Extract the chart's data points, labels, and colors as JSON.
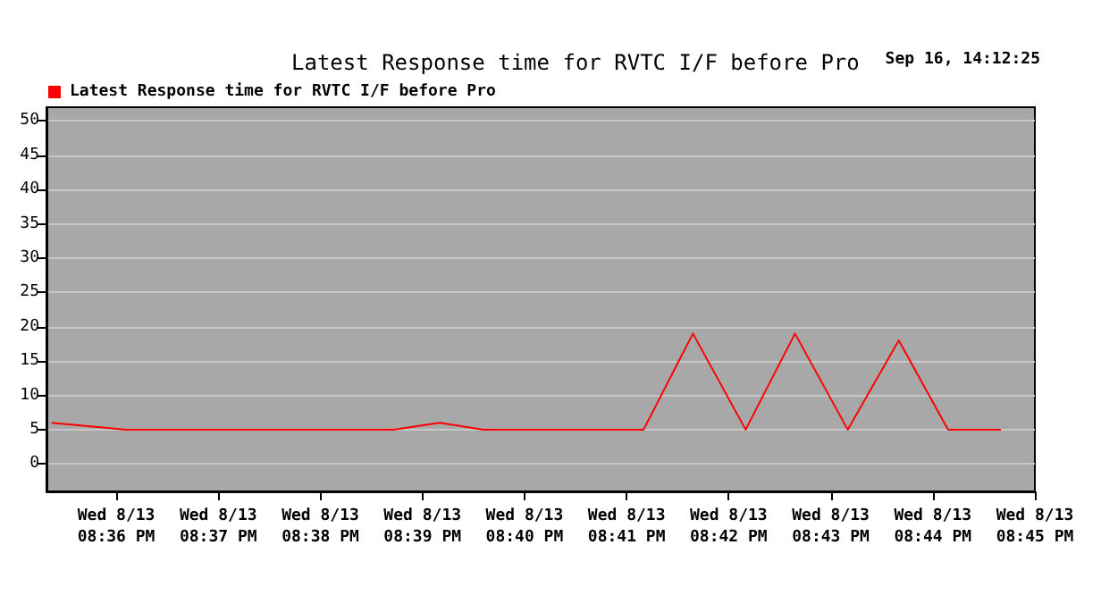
{
  "chart_data": {
    "type": "line",
    "title": "Latest Response time for RVTC I/F before Pro",
    "annotations": [
      "Sep 16, 14:12:25"
    ],
    "x": [
      "--08-13T20:35:22",
      "--08-13T20:36:06",
      "--08-13T20:38:43",
      "--08-13T20:39:10",
      "--08-13T20:39:36",
      "--08-13T20:41:10",
      "--08-13T20:41:39",
      "--08-13T20:42:10",
      "--08-13T20:42:39",
      "--08-13T20:43:10",
      "--08-13T20:43:40",
      "--08-13T20:44:09",
      "--08-13T20:44:40"
    ],
    "series": [
      {
        "name": "Latest Response time for RVTC I/F before Pro",
        "color": "#ff0000",
        "values": [
          6,
          5,
          5,
          6,
          5,
          5,
          19,
          5,
          19,
          5,
          18,
          5,
          5
        ]
      }
    ],
    "xlim": [
      "--08-13T20:35:19",
      "--08-13T20:45"
    ],
    "xticks": [
      {
        "value": "--08-13T20:36",
        "label": "Wed 8/13\n08:36 PM"
      },
      {
        "value": "--08-13T20:37",
        "label": "Wed 8/13\n08:37 PM"
      },
      {
        "value": "--08-13T20:38",
        "label": "Wed 8/13\n08:38 PM"
      },
      {
        "value": "--08-13T20:39",
        "label": "Wed 8/13\n08:39 PM"
      },
      {
        "value": "--08-13T20:40",
        "label": "Wed 8/13\n08:40 PM"
      },
      {
        "value": "--08-13T20:41",
        "label": "Wed 8/13\n08:41 PM"
      },
      {
        "value": "--08-13T20:42",
        "label": "Wed 8/13\n08:42 PM"
      },
      {
        "value": "--08-13T20:43",
        "label": "Wed 8/13\n08:43 PM"
      },
      {
        "value": "--08-13T20:44",
        "label": "Wed 8/13\n08:44 PM"
      },
      {
        "value": "--08-13T20:45",
        "label": "Wed 8/13\n08:45 PM"
      }
    ],
    "ylim": [
      -4,
      52
    ],
    "yticks": [
      0,
      5,
      10,
      15,
      20,
      25,
      30,
      35,
      40,
      45,
      50
    ],
    "grid": "y",
    "legend": "top left",
    "marker": "none",
    "line_style": "solid"
  }
}
